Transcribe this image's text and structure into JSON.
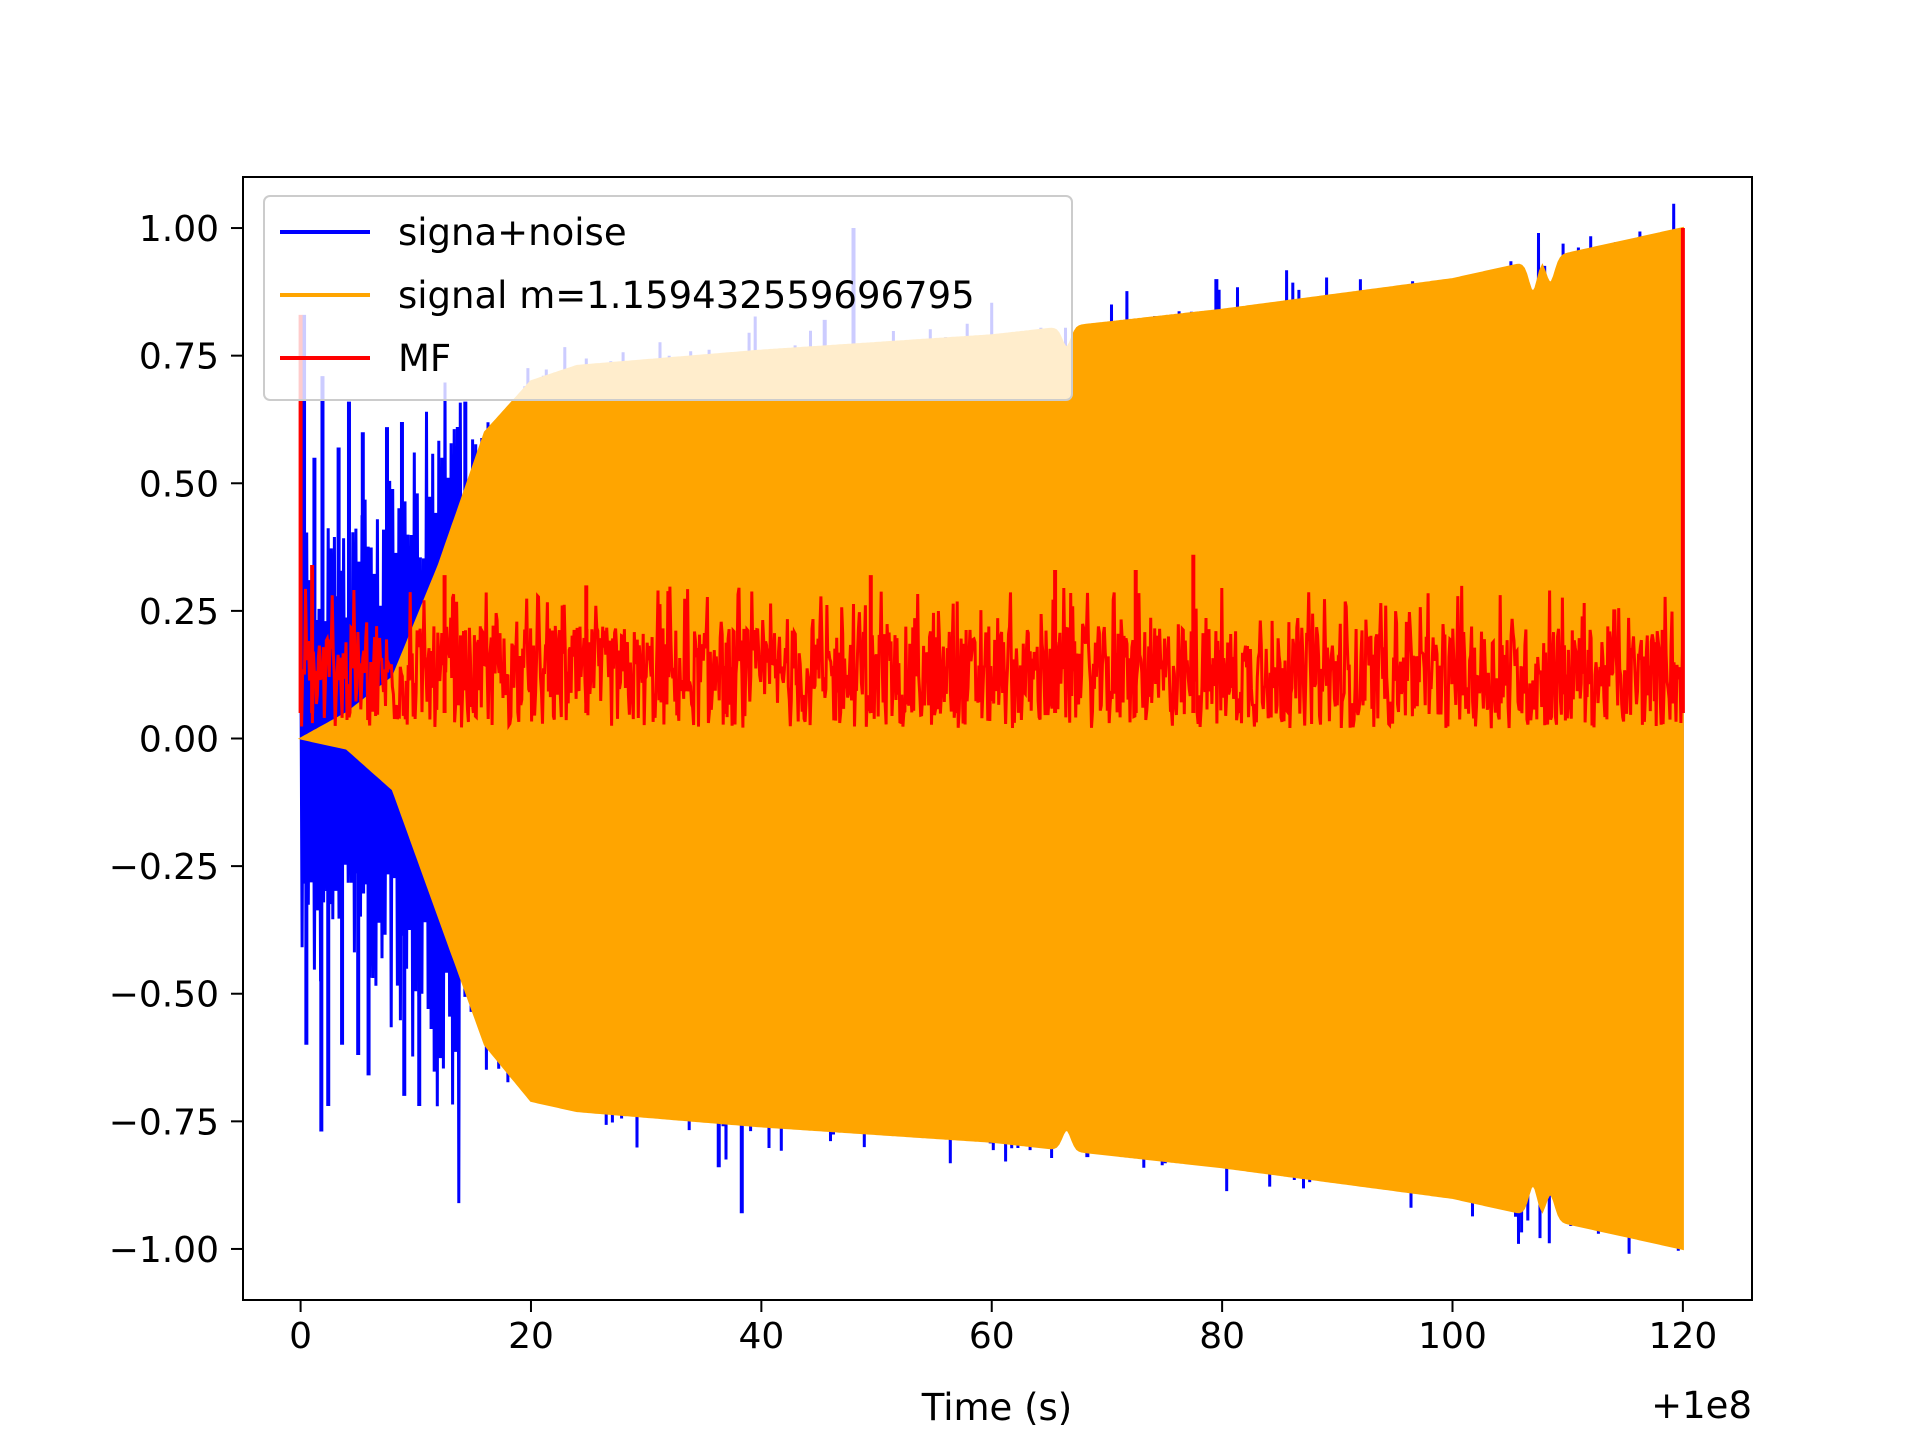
{
  "chart_data": {
    "type": "line",
    "title": "",
    "xlabel": "Time (s)",
    "ylabel": "",
    "x_offset_label": "+1e8",
    "xlim": [
      -5,
      126
    ],
    "ylim": [
      -1.1,
      1.1
    ],
    "x_ticks": [
      0,
      20,
      40,
      60,
      80,
      100,
      120
    ],
    "x_tick_labels": [
      "0",
      "20",
      "40",
      "60",
      "80",
      "100",
      "120"
    ],
    "y_ticks": [
      1.0,
      0.75,
      0.5,
      0.25,
      0.0,
      -0.25,
      -0.5,
      -0.75,
      -1.0
    ],
    "y_tick_labels": [
      "1.00",
      "0.75",
      "0.50",
      "0.25",
      "0.00",
      "−0.25",
      "−0.50",
      "−0.75",
      "−1.00"
    ],
    "grid": false,
    "legend_position": "top-left",
    "series": [
      {
        "name": "signa+noise",
        "color": "#0000ff",
        "x_range": [
          0,
          120
        ],
        "spikes": [
          {
            "x": 0.3,
            "y": 0.83
          },
          {
            "x": 0.5,
            "y": -0.6
          },
          {
            "x": 1.2,
            "y": 0.55
          },
          {
            "x": 1.8,
            "y": -0.77
          },
          {
            "x": 1.9,
            "y": 0.71
          },
          {
            "x": 2.4,
            "y": -0.72
          },
          {
            "x": 3.3,
            "y": 0.57
          },
          {
            "x": 3.6,
            "y": -0.6
          },
          {
            "x": 4.2,
            "y": 0.66
          },
          {
            "x": 5.0,
            "y": -0.62
          },
          {
            "x": 5.4,
            "y": 0.6
          },
          {
            "x": 5.9,
            "y": -0.66
          },
          {
            "x": 7.5,
            "y": 0.61
          },
          {
            "x": 8.8,
            "y": 0.62
          },
          {
            "x": 9.0,
            "y": -0.7
          },
          {
            "x": 10.3,
            "y": -0.72
          },
          {
            "x": 14.3,
            "y": 0.66
          },
          {
            "x": 36.3,
            "y": -0.84
          },
          {
            "x": 38.3,
            "y": -0.93
          },
          {
            "x": 48.0,
            "y": 1.0
          },
          {
            "x": 45.5,
            "y": 0.82
          },
          {
            "x": 68.3,
            "y": -0.82
          },
          {
            "x": 79.5,
            "y": 0.9
          }
        ]
      },
      {
        "name": "signal m=1.159432559696795",
        "color": "#ffa500",
        "x_range": [
          0,
          120
        ],
        "envelope": [
          {
            "x": 0,
            "upper": 0.0,
            "lower": 0.0
          },
          {
            "x": 4,
            "upper": 0.05,
            "lower": -0.02
          },
          {
            "x": 8,
            "upper": 0.12,
            "lower": -0.1
          },
          {
            "x": 12,
            "upper": 0.34,
            "lower": -0.35
          },
          {
            "x": 16,
            "upper": 0.6,
            "lower": -0.6
          },
          {
            "x": 20,
            "upper": 0.7,
            "lower": -0.71
          },
          {
            "x": 24,
            "upper": 0.73,
            "lower": -0.73
          },
          {
            "x": 40,
            "upper": 0.76,
            "lower": -0.76
          },
          {
            "x": 60,
            "upper": 0.79,
            "lower": -0.79
          },
          {
            "x": 80,
            "upper": 0.84,
            "lower": -0.84
          },
          {
            "x": 100,
            "upper": 0.9,
            "lower": -0.9
          },
          {
            "x": 120,
            "upper": 1.0,
            "lower": -1.0
          }
        ],
        "dips": [
          {
            "x": 66.5,
            "depth": 0.04
          },
          {
            "x": 107.0,
            "depth": 0.06
          },
          {
            "x": 108.5,
            "depth": 0.05
          }
        ]
      },
      {
        "name": "MF",
        "color": "#ff0000",
        "x_range": [
          0,
          120
        ],
        "baseline_range": [
          0.02,
          0.22
        ],
        "peaks": [
          {
            "x": 0.0,
            "y": 0.83
          },
          {
            "x": 1.0,
            "y": 0.34
          },
          {
            "x": 12.5,
            "y": 0.32
          },
          {
            "x": 24.8,
            "y": 0.3
          },
          {
            "x": 49.5,
            "y": 0.32
          },
          {
            "x": 65.5,
            "y": 0.33
          },
          {
            "x": 72.5,
            "y": 0.33
          },
          {
            "x": 77.5,
            "y": 0.36
          },
          {
            "x": 120.0,
            "y": 1.0
          }
        ]
      }
    ]
  }
}
